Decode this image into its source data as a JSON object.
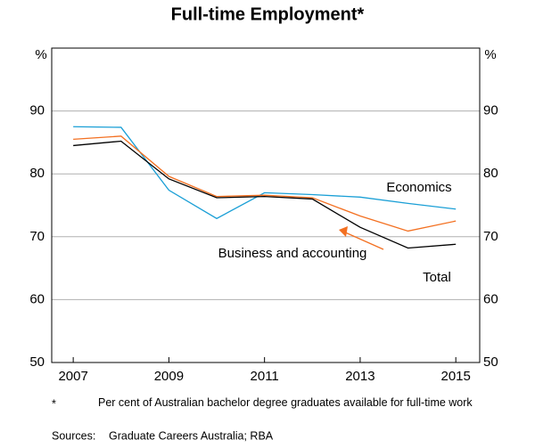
{
  "chart_data": {
    "type": "line",
    "title": "Full-time Employment*",
    "y_unit": "%",
    "x": [
      2007,
      2008,
      2009,
      2010,
      2011,
      2012,
      2013,
      2014,
      2015
    ],
    "series": [
      {
        "name": "Economics",
        "color": "#1a9fd6",
        "values": [
          87.5,
          87.4,
          77.4,
          72.9,
          77.0,
          76.7,
          76.3,
          75.3,
          74.4
        ]
      },
      {
        "name": "Business and accounting",
        "color": "#f37021",
        "values": [
          85.5,
          86.0,
          79.6,
          76.4,
          76.6,
          76.2,
          73.3,
          70.9,
          72.5
        ]
      },
      {
        "name": "Total",
        "color": "#000000",
        "values": [
          84.5,
          85.2,
          79.2,
          76.2,
          76.4,
          76.0,
          71.5,
          68.2,
          68.8
        ]
      }
    ],
    "xlim": [
      2006.55,
      2015.5
    ],
    "xticks": [
      2007,
      2009,
      2011,
      2013,
      2015
    ],
    "ylim": [
      50,
      100
    ],
    "yticks": [
      50,
      60,
      70,
      80,
      90
    ],
    "grid": true
  },
  "notes": [
    {
      "marker": "*",
      "text": "Per cent of Australian bachelor degree graduates available for full-time work"
    },
    {
      "marker": "Sources:",
      "text": "Graduate Careers Australia; RBA"
    }
  ]
}
